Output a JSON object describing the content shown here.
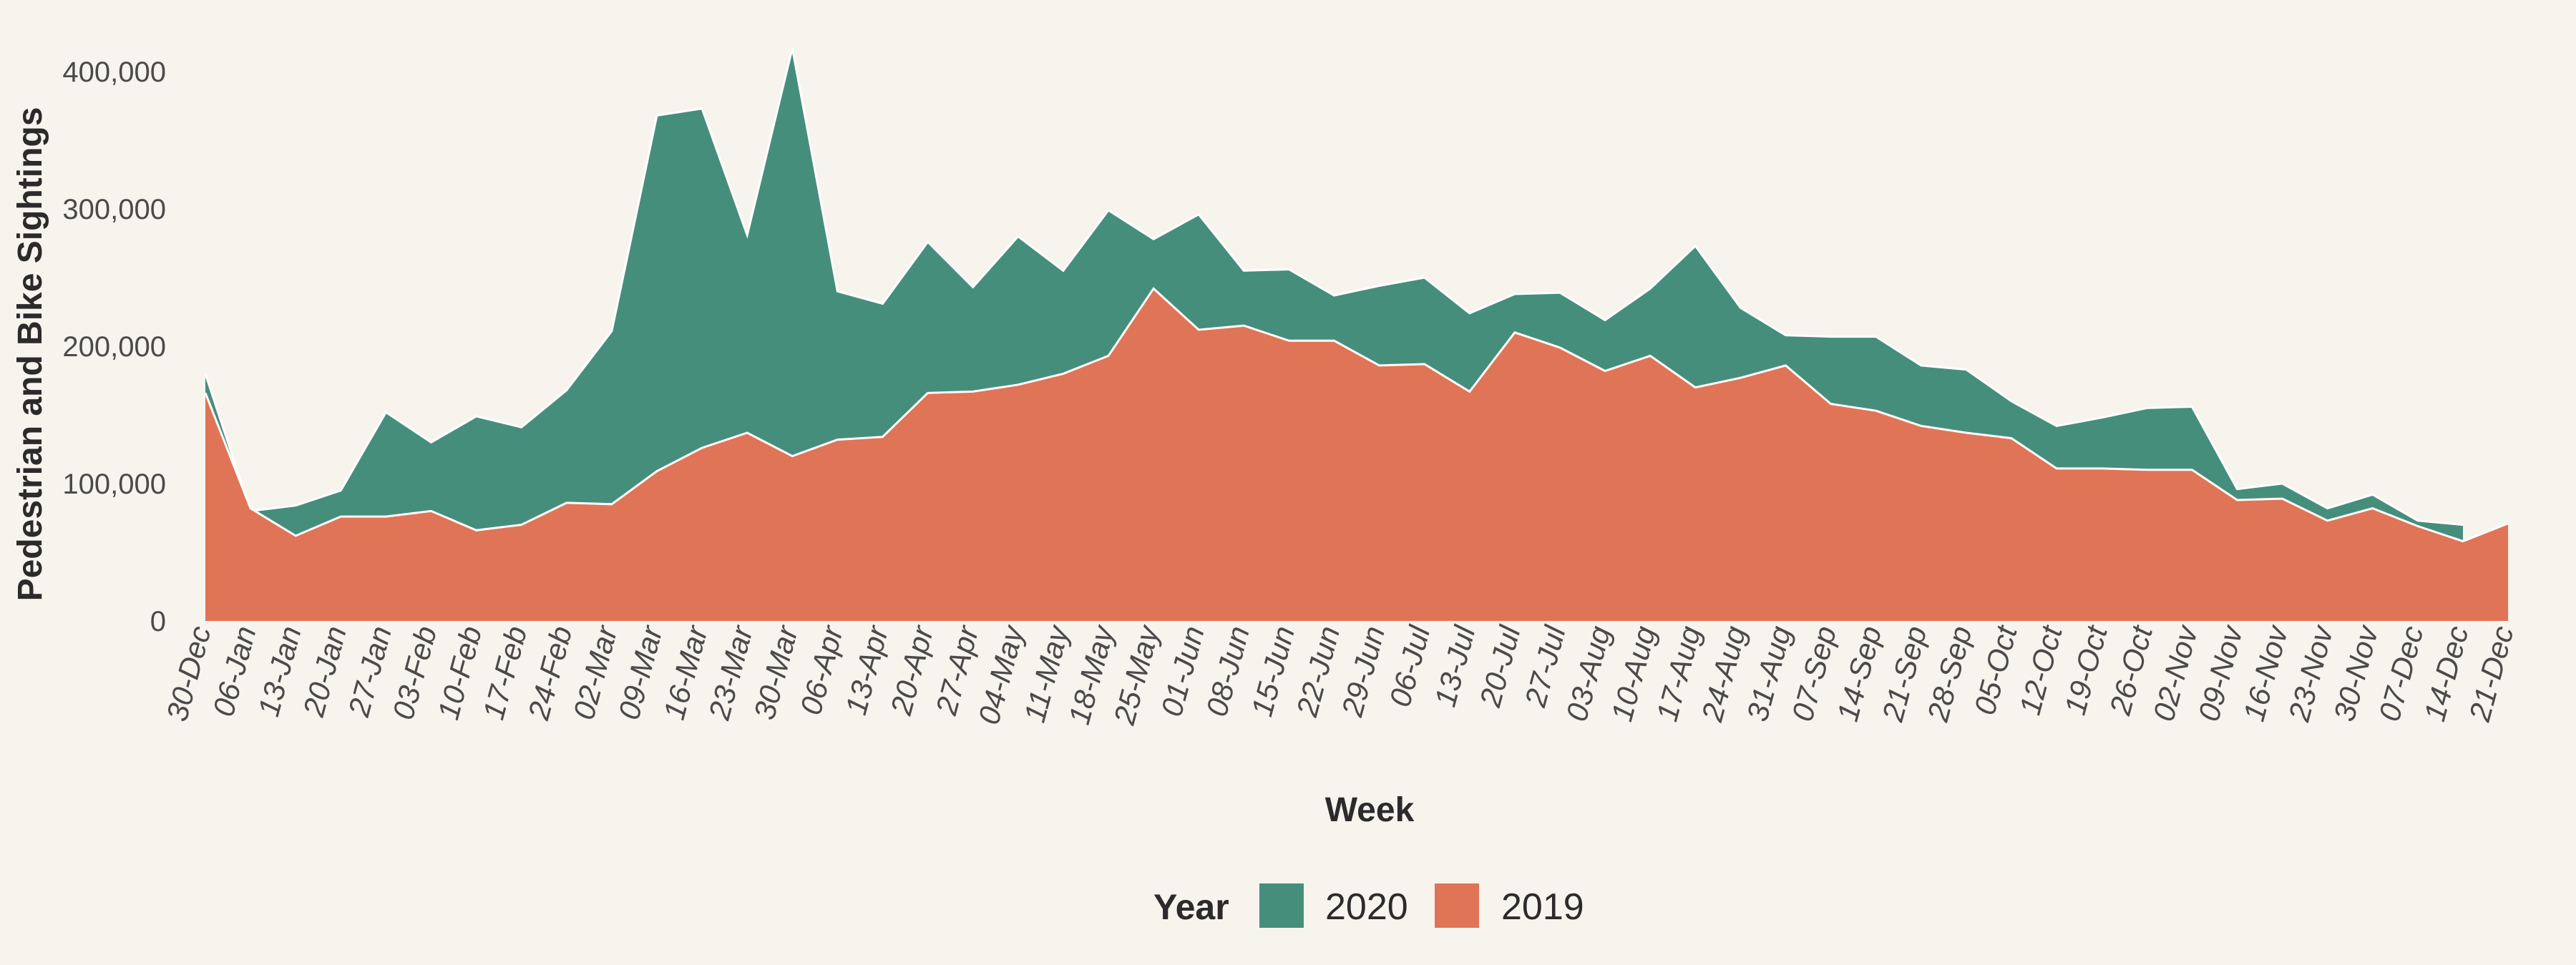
{
  "chart_data": {
    "type": "area",
    "title": "",
    "xlabel": "Week",
    "ylabel": "Pedestrian and Bike Sightings",
    "ylim": [
      0,
      420000
    ],
    "yticks": [
      0,
      100000,
      200000,
      300000,
      400000
    ],
    "ytick_labels": [
      "0",
      "100,000",
      "200,000",
      "300,000",
      "400,000"
    ],
    "grid": false,
    "stacked": false,
    "legend": {
      "title": "Year",
      "position": "bottom",
      "entries": [
        "2020",
        "2019"
      ]
    },
    "categories": [
      "30-Dec",
      "06-Jan",
      "13-Jan",
      "20-Jan",
      "27-Jan",
      "03-Feb",
      "10-Feb",
      "17-Feb",
      "24-Feb",
      "02-Mar",
      "09-Mar",
      "16-Mar",
      "23-Mar",
      "30-Mar",
      "06-Apr",
      "13-Apr",
      "20-Apr",
      "27-Apr",
      "04-May",
      "11-May",
      "18-May",
      "25-May",
      "01-Jun",
      "08-Jun",
      "15-Jun",
      "22-Jun",
      "29-Jun",
      "06-Jul",
      "13-Jul",
      "20-Jul",
      "27-Jul",
      "03-Aug",
      "10-Aug",
      "17-Aug",
      "24-Aug",
      "31-Aug",
      "07-Sep",
      "14-Sep",
      "21-Sep",
      "28-Sep",
      "05-Oct",
      "12-Oct",
      "19-Oct",
      "26-Oct",
      "02-Nov",
      "09-Nov",
      "16-Nov",
      "23-Nov",
      "30-Nov",
      "07-Dec",
      "14-Dec",
      "21-Dec"
    ],
    "series": [
      {
        "name": "2020",
        "color": "#468e7c",
        "values": [
          180000,
          80000,
          84000,
          95000,
          152000,
          130000,
          149000,
          141000,
          168000,
          211000,
          368000,
          373000,
          281000,
          417000,
          240000,
          231000,
          276000,
          243000,
          280000,
          255000,
          299000,
          278000,
          296000,
          255000,
          256000,
          237000,
          244000,
          250000,
          224000,
          238000,
          239000,
          219000,
          242000,
          273000,
          228000,
          208000,
          207000,
          207000,
          186000,
          183000,
          160000,
          142000,
          148000,
          155000,
          156000,
          96000,
          100000,
          82000,
          92000,
          73000,
          70000,
          null
        ]
      },
      {
        "name": "2019",
        "color": "#e07457",
        "values": [
          166000,
          82000,
          62000,
          76000,
          76000,
          80000,
          66000,
          70000,
          86000,
          85000,
          109000,
          126000,
          137000,
          120000,
          132000,
          134000,
          166000,
          167000,
          172000,
          180000,
          193000,
          242000,
          212000,
          215000,
          204000,
          204000,
          186000,
          187000,
          167000,
          210000,
          199000,
          182000,
          193000,
          170000,
          177000,
          186000,
          158000,
          153000,
          142000,
          137000,
          133000,
          111000,
          111000,
          110000,
          110000,
          88000,
          89000,
          73000,
          82000,
          69000,
          58000,
          71000
        ]
      }
    ]
  }
}
